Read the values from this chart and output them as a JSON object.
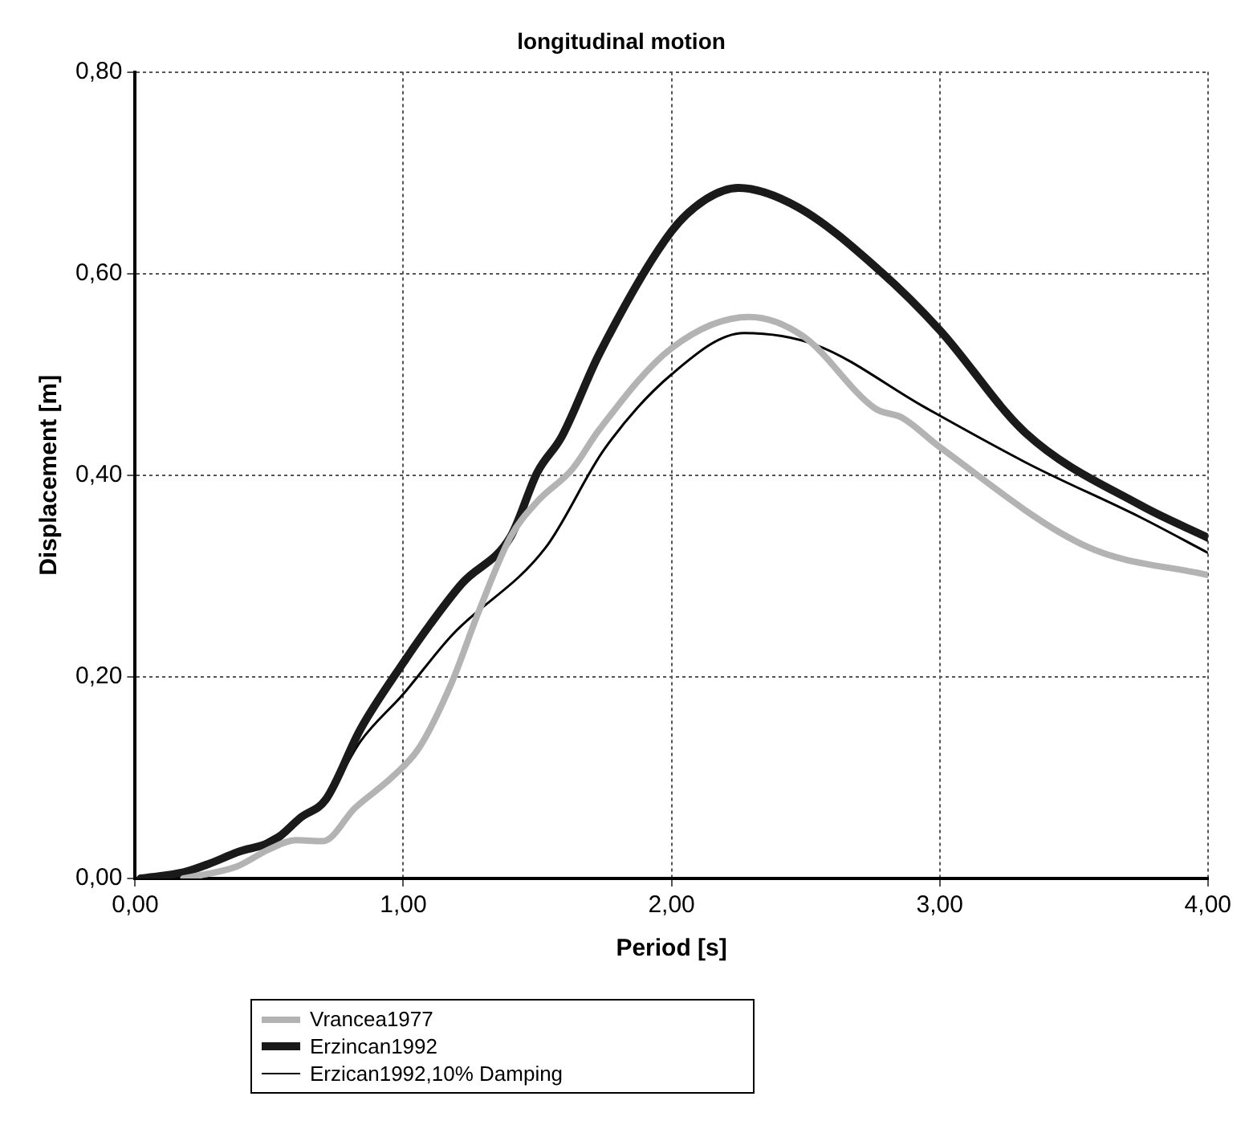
{
  "chart_data": {
    "type": "line",
    "title": "longitudinal motion",
    "xlabel": "Period [s]",
    "ylabel": "Displacement [m]",
    "xlim": [
      0,
      4
    ],
    "ylim": [
      0,
      0.8
    ],
    "xticks": [
      {
        "value": 0,
        "label": "0,00"
      },
      {
        "value": 1,
        "label": "1,00"
      },
      {
        "value": 2,
        "label": "2,00"
      },
      {
        "value": 3,
        "label": "3,00"
      },
      {
        "value": 4,
        "label": "4,00"
      }
    ],
    "yticks": [
      {
        "value": 0,
        "label": "0,00"
      },
      {
        "value": 0.2,
        "label": "0,20"
      },
      {
        "value": 0.4,
        "label": "0,40"
      },
      {
        "value": 0.6,
        "label": "0,60"
      },
      {
        "value": 0.8,
        "label": "0,80"
      }
    ],
    "grid": true,
    "legend": "bottom",
    "marker": "none",
    "line_style": "solid",
    "series": [
      {
        "name": "Vrancea1977",
        "color": "#b3b3b3",
        "x": [
          0.18,
          0.38,
          0.5,
          0.6,
          0.7,
          0.82,
          0.96,
          1.06,
          1.18,
          1.28,
          1.4,
          1.5,
          1.63,
          1.73,
          2.0,
          2.29,
          2.49,
          2.76,
          2.86,
          3.0,
          3.55,
          4.0
        ],
        "values": [
          0,
          0.012,
          0.029,
          0.038,
          0.037,
          0.07,
          0.101,
          0.13,
          0.194,
          0.264,
          0.339,
          0.374,
          0.406,
          0.445,
          0.526,
          0.557,
          0.538,
          0.466,
          0.457,
          0.428,
          0.329,
          0.301
        ]
      },
      {
        "name": "Erzincan1992",
        "color": "#1a1a1a",
        "x": [
          0.02,
          0.18,
          0.28,
          0.38,
          0.52,
          0.62,
          0.71,
          0.84,
          1.0,
          1.1,
          1.22,
          1.4,
          1.5,
          1.59,
          1.73,
          2.0,
          2.13,
          2.25,
          2.47,
          2.78,
          3.0,
          3.32,
          3.75,
          4.0
        ],
        "values": [
          0,
          0.006,
          0.015,
          0.026,
          0.038,
          0.061,
          0.078,
          0.148,
          0.214,
          0.252,
          0.293,
          0.339,
          0.403,
          0.438,
          0.52,
          0.642,
          0.674,
          0.685,
          0.666,
          0.602,
          0.544,
          0.442,
          0.37,
          0.338
        ]
      },
      {
        "name": "Erzican1992,10% Damping",
        "color": "#000000",
        "x": [
          0.02,
          0.3,
          0.6,
          0.71,
          0.84,
          1.0,
          1.18,
          1.53,
          1.75,
          2.0,
          2.27,
          2.54,
          2.94,
          3.34,
          3.75,
          4.0
        ],
        "values": [
          0,
          0.015,
          0.055,
          0.078,
          0.136,
          0.183,
          0.241,
          0.328,
          0.426,
          0.5,
          0.541,
          0.529,
          0.468,
          0.41,
          0.358,
          0.323
        ]
      }
    ]
  }
}
